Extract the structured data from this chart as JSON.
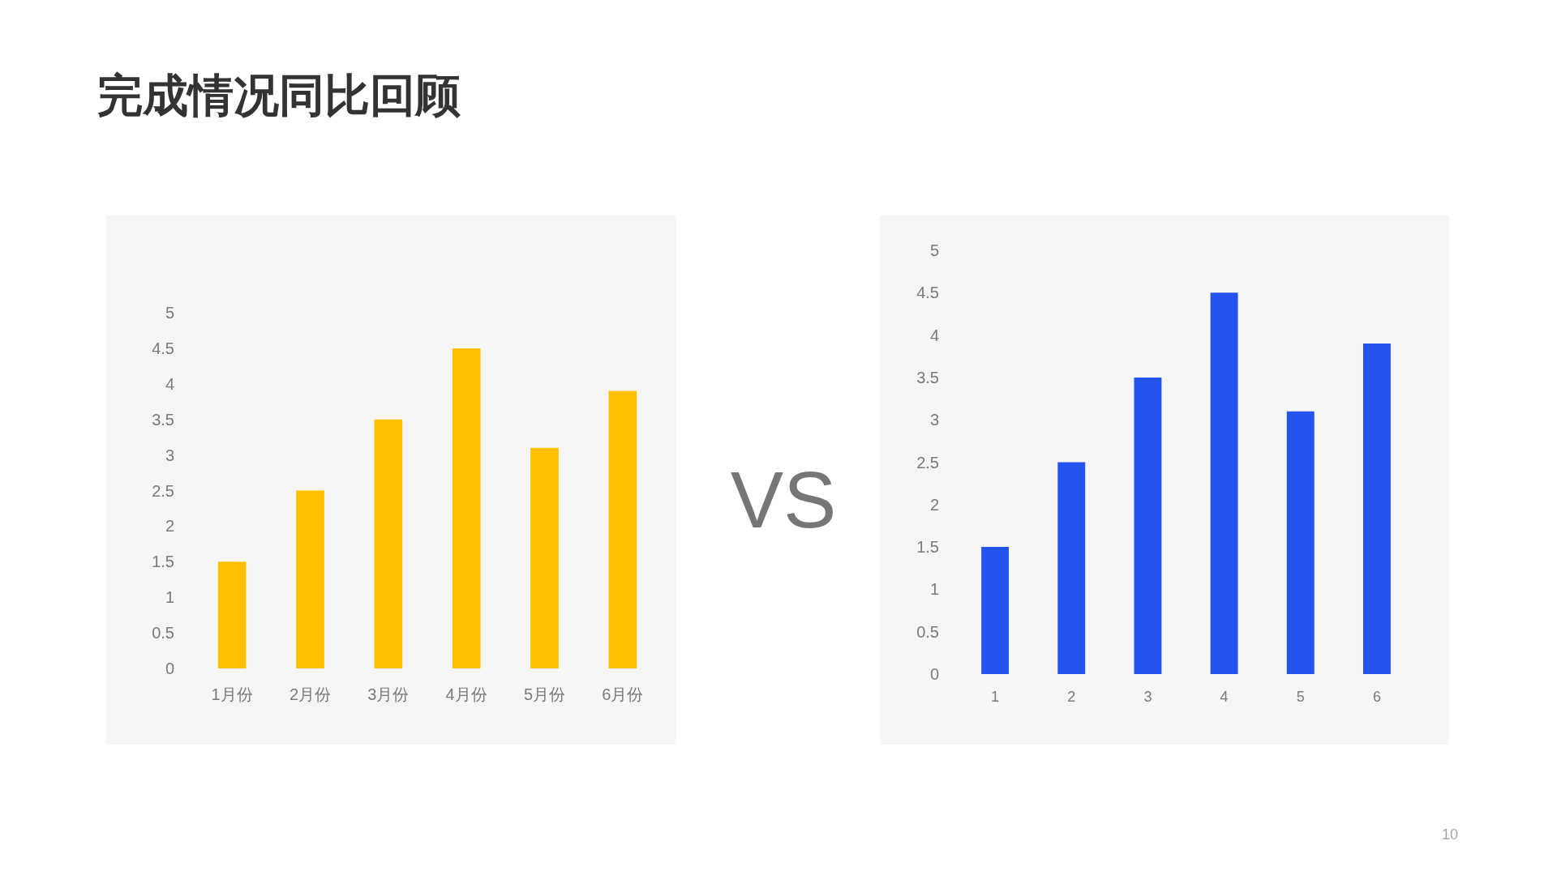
{
  "chart_data": [
    {
      "type": "bar",
      "title": "完成情况同比回顾",
      "categories": [
        "1月份",
        "2月份",
        "3月份",
        "4月份",
        "5月份",
        "6月份"
      ],
      "values": [
        1.5,
        2.5,
        3.5,
        4.5,
        3.1,
        3.9
      ],
      "color": "#ffc000",
      "ylim": [
        0,
        5
      ],
      "yticks": [
        0,
        0.5,
        1,
        1.5,
        2,
        2.5,
        3,
        3.5,
        4,
        4.5,
        5
      ],
      "annotations": [
        "VS"
      ]
    },
    {
      "type": "bar",
      "categories": [
        "1",
        "2",
        "3",
        "4",
        "5",
        "6"
      ],
      "values": [
        1.5,
        2.5,
        3.5,
        4.5,
        3.1,
        3.9
      ],
      "color": "#2453f0",
      "ylim": [
        0,
        5
      ],
      "yticks": [
        0,
        0.5,
        1,
        1.5,
        2,
        2.5,
        3,
        3.5,
        4,
        4.5,
        5
      ],
      "annotations": [
        "10"
      ]
    }
  ]
}
